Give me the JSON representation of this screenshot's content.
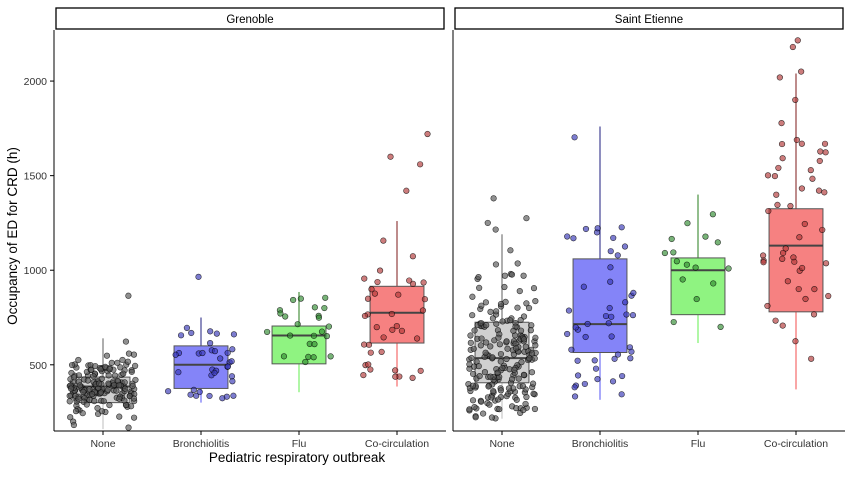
{
  "chart_data": {
    "type": "boxplot",
    "xlabel": "Pediatric respiratory outbreak",
    "ylabel": "Occupancy of ED for CRD (h)",
    "ylim": [
      150,
      2270
    ],
    "yticks": [
      500,
      1000,
      1500,
      2000
    ],
    "grid": false,
    "categories": [
      "None",
      "Bronchiolitis",
      "Flu",
      "Co-circulation"
    ],
    "colors": {
      "None": "#c8c8c8",
      "Bronchiolitis": "#6f6ff7",
      "Flu": "#7bf16b",
      "Co-circulation": "#f56b6b"
    },
    "facets": [
      {
        "title": "Grenoble",
        "boxes": [
          {
            "category": "None",
            "min": 160,
            "q1": 300,
            "median": 385,
            "q3": 435,
            "max": 640,
            "n": 170,
            "outliers": [
              865
            ]
          },
          {
            "category": "Bronchiolitis",
            "min": 300,
            "q1": 375,
            "median": 500,
            "q3": 600,
            "max": 750,
            "n": 36,
            "outliers": [
              965
            ]
          },
          {
            "category": "Flu",
            "min": 355,
            "q1": 505,
            "median": 655,
            "q3": 705,
            "max": 885,
            "n": 24,
            "outliers": []
          },
          {
            "category": "Co-circulation",
            "min": 385,
            "q1": 615,
            "median": 775,
            "q3": 915,
            "max": 1260,
            "n": 36,
            "outliers": [
              1420,
              1560,
              1600,
              1720
            ]
          }
        ]
      },
      {
        "title": "Saint Etienne",
        "boxes": [
          {
            "category": "None",
            "min": 215,
            "q1": 405,
            "median": 535,
            "q3": 725,
            "max": 1190,
            "n": 210,
            "outliers": [
              1215,
              1250,
              1275,
              1380
            ]
          },
          {
            "category": "Bronchiolitis",
            "min": 315,
            "q1": 565,
            "median": 715,
            "q3": 1060,
            "max": 1760,
            "n": 48,
            "outliers": []
          },
          {
            "category": "Flu",
            "min": 615,
            "q1": 765,
            "median": 1000,
            "q3": 1065,
            "max": 1400,
            "n": 16,
            "outliers": []
          },
          {
            "category": "Co-circulation",
            "min": 370,
            "q1": 780,
            "median": 1130,
            "q3": 1325,
            "max": 2040,
            "n": 48,
            "outliers": [
              2050,
              2180,
              2215
            ]
          }
        ]
      }
    ]
  }
}
